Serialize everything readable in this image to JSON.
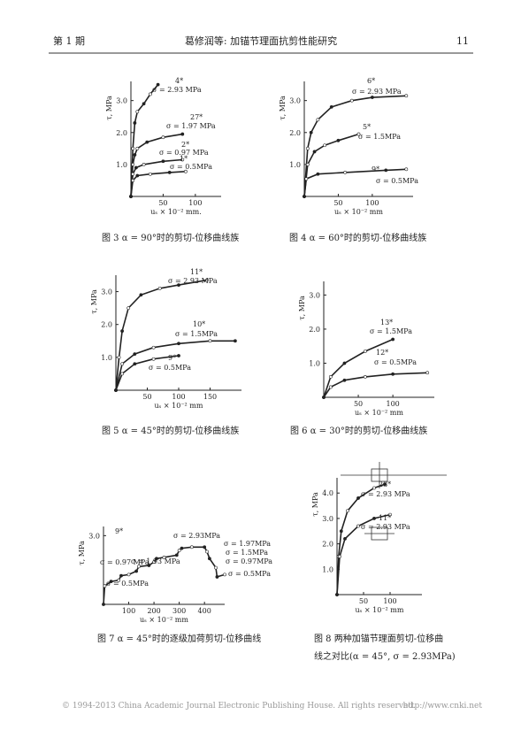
{
  "header": {
    "issue": "第 1 期",
    "title": "葛修润等: 加锚节理面抗剪性能研究",
    "page": "11"
  },
  "chart_data": [
    {
      "type": "line",
      "caption": "图 3   α = 90°时的剪切-位移曲线族",
      "xlabel": "uₛ × 10⁻² mm.",
      "ylabel": "τ, MPa",
      "xlim": [
        0,
        140
      ],
      "ylim": [
        0,
        3.6
      ],
      "xticks": [
        50,
        100
      ],
      "yticks": [
        {
          "value": 1,
          "label": "1.0"
        },
        {
          "value": 2,
          "label": "2.0"
        },
        {
          "value": 3,
          "label": "3.0"
        }
      ],
      "series": [
        {
          "name": "4*",
          "label": "σ = 2.93 MPa",
          "x": [
            0,
            3,
            6,
            10,
            20,
            30,
            42
          ],
          "values": [
            0,
            1.5,
            2.3,
            2.65,
            2.9,
            3.2,
            3.5
          ]
        },
        {
          "name": "27*",
          "label": "σ = 1.97 MPa",
          "x": [
            0,
            3,
            6,
            10,
            25,
            50,
            80
          ],
          "values": [
            0,
            1.0,
            1.3,
            1.5,
            1.7,
            1.85,
            1.95
          ]
        },
        {
          "name": "2*",
          "label": "σ = 0.97 MPa",
          "x": [
            0,
            3,
            8,
            20,
            50,
            80
          ],
          "values": [
            0,
            0.7,
            0.9,
            1.0,
            1.1,
            1.15
          ]
        },
        {
          "name": "1*",
          "label": "σ = 0.5MPa",
          "x": [
            0,
            3,
            10,
            30,
            60,
            85
          ],
          "values": [
            0,
            0.5,
            0.65,
            0.7,
            0.75,
            0.78
          ]
        }
      ]
    },
    {
      "type": "line",
      "caption": "图 4   α = 60°时的剪切-位移曲线族",
      "xlabel": "uₛ × 10⁻² mm",
      "ylabel": "τ, MPa",
      "xlim": [
        0,
        160
      ],
      "ylim": [
        0,
        3.6
      ],
      "xticks": [
        50,
        100
      ],
      "yticks": [
        {
          "value": 1,
          "label": "1.0"
        },
        {
          "value": 2,
          "label": "2.0"
        },
        {
          "value": 3,
          "label": "3.0"
        }
      ],
      "series": [
        {
          "name": "6*",
          "label": "σ = 2.93 MPa",
          "x": [
            0,
            5,
            10,
            20,
            40,
            70,
            100,
            150
          ],
          "values": [
            0,
            1.5,
            2.0,
            2.4,
            2.8,
            3.0,
            3.1,
            3.15
          ]
        },
        {
          "name": "5*",
          "label": "σ = 1.5MPa",
          "x": [
            0,
            5,
            15,
            30,
            50,
            80
          ],
          "values": [
            0,
            1.0,
            1.4,
            1.6,
            1.75,
            1.95
          ]
        },
        {
          "name": "9*",
          "label": "σ = 0.5MPa",
          "x": [
            0,
            3,
            20,
            60,
            120,
            150
          ],
          "values": [
            0,
            0.55,
            0.7,
            0.75,
            0.82,
            0.85
          ]
        }
      ]
    },
    {
      "type": "line",
      "caption": "图 5   α = 45°时的剪切-位移曲线族",
      "xlabel": "uₛ × 10⁻² mm",
      "ylabel": "τ, MPa",
      "xlim": [
        0,
        200
      ],
      "ylim": [
        0,
        3.5
      ],
      "xticks": [
        50,
        100,
        150
      ],
      "yticks": [
        {
          "value": 1,
          "label": "1.0"
        },
        {
          "value": 2,
          "label": "2.0"
        },
        {
          "value": 3,
          "label": "3.0"
        }
      ],
      "series": [
        {
          "name": "11*",
          "label": "σ = 2.93 MPa",
          "x": [
            0,
            5,
            10,
            20,
            40,
            70,
            100,
            145
          ],
          "values": [
            0,
            1.0,
            1.8,
            2.5,
            2.9,
            3.1,
            3.2,
            3.35
          ]
        },
        {
          "name": "10*",
          "label": "σ = 1.5MPa",
          "x": [
            0,
            10,
            30,
            60,
            100,
            150,
            190
          ],
          "values": [
            0,
            0.8,
            1.1,
            1.3,
            1.42,
            1.5,
            1.5
          ]
        },
        {
          "name": "9*",
          "label": "σ = 0.5MPa",
          "x": [
            0,
            10,
            30,
            60,
            100
          ],
          "values": [
            0,
            0.5,
            0.8,
            0.95,
            1.05
          ]
        }
      ]
    },
    {
      "type": "line",
      "caption": "图 6   α = 30°时的剪切-位移曲线族",
      "xlabel": "uₛ × 10⁻² mm",
      "ylabel": "τ, MPa",
      "xlim": [
        0,
        160
      ],
      "ylim": [
        0,
        3.4
      ],
      "xticks": [
        50,
        100
      ],
      "yticks": [
        {
          "value": 1,
          "label": "1.0"
        },
        {
          "value": 2,
          "label": "2.0"
        },
        {
          "value": 3,
          "label": "3.0"
        }
      ],
      "series": [
        {
          "name": "13*",
          "label": "σ = 1.5MPa",
          "x": [
            0,
            10,
            30,
            60,
            100
          ],
          "values": [
            0,
            0.6,
            1.0,
            1.35,
            1.7
          ]
        },
        {
          "name": "12*",
          "label": "σ = 0.5MPa",
          "x": [
            0,
            10,
            30,
            60,
            100,
            150
          ],
          "values": [
            0,
            0.3,
            0.5,
            0.6,
            0.68,
            0.72
          ]
        }
      ]
    },
    {
      "type": "line",
      "caption": "图 7   α = 45°时的逐级加荷剪切-位移曲线",
      "xlabel": "uₛ × 10⁻² mm",
      "ylabel": "τ, MPa",
      "xlim": [
        0,
        480
      ],
      "ylim": [
        0,
        3.4
      ],
      "xticks": [
        100,
        200,
        300,
        400
      ],
      "yticks": [
        {
          "value": 3,
          "label": "3.0"
        }
      ],
      "annotations": [
        "9*",
        "σ = 2.93MPa",
        "σ = 1.97MPa",
        "σ = 1.5MPa",
        "σ = 0.97MPa",
        "σ = 0.5MPa",
        "σ = 1.93 MPa",
        "σ = 0.97 MPa",
        "σ = 0.5MPa"
      ],
      "series": [
        {
          "x": [
            0,
            5,
            30,
            60,
            70,
            100,
            130,
            140,
            180,
            200,
            210,
            240,
            290,
            300,
            310,
            350,
            400,
            410,
            420,
            445,
            450,
            480
          ],
          "values": [
            0,
            0.8,
            1.0,
            1.05,
            1.25,
            1.3,
            1.45,
            1.65,
            1.7,
            1.85,
            2.0,
            2.05,
            2.15,
            2.35,
            2.45,
            2.5,
            2.5,
            2.3,
            2.0,
            1.6,
            1.2,
            1.3
          ]
        }
      ]
    },
    {
      "type": "line",
      "caption": "图 8   两种加锚节理面剪切-位移曲",
      "caption2": "线之对比(α = 45°, σ = 2.93MPa)",
      "xlabel": "uₛ × 10⁻² mm",
      "ylabel": "τ, MPa",
      "xlim": [
        0,
        160
      ],
      "ylim": [
        0,
        4.6
      ],
      "xticks": [
        50,
        100
      ],
      "yticks": [
        {
          "value": 1,
          "label": "1.0"
        },
        {
          "value": 2,
          "label": "2.0"
        },
        {
          "value": 3,
          "label": "3.0"
        },
        {
          "value": 4,
          "label": "4.0"
        }
      ],
      "series": [
        {
          "name": "23*",
          "label": "σ = 2.93 MPa",
          "x": [
            0,
            3,
            8,
            20,
            40,
            70,
            90
          ],
          "values": [
            0,
            1.5,
            2.5,
            3.3,
            3.8,
            4.2,
            4.35
          ]
        },
        {
          "name": "11*",
          "label": "σ = 2.93 MPa",
          "x": [
            0,
            5,
            15,
            40,
            70,
            100
          ],
          "values": [
            0,
            1.5,
            2.2,
            2.7,
            3.0,
            3.15
          ]
        }
      ]
    }
  ],
  "footer": {
    "copyright": "© 1994-2013 China Academic Journal Electronic Publishing House. All rights reserved.",
    "url": "http://www.cnki.net"
  }
}
